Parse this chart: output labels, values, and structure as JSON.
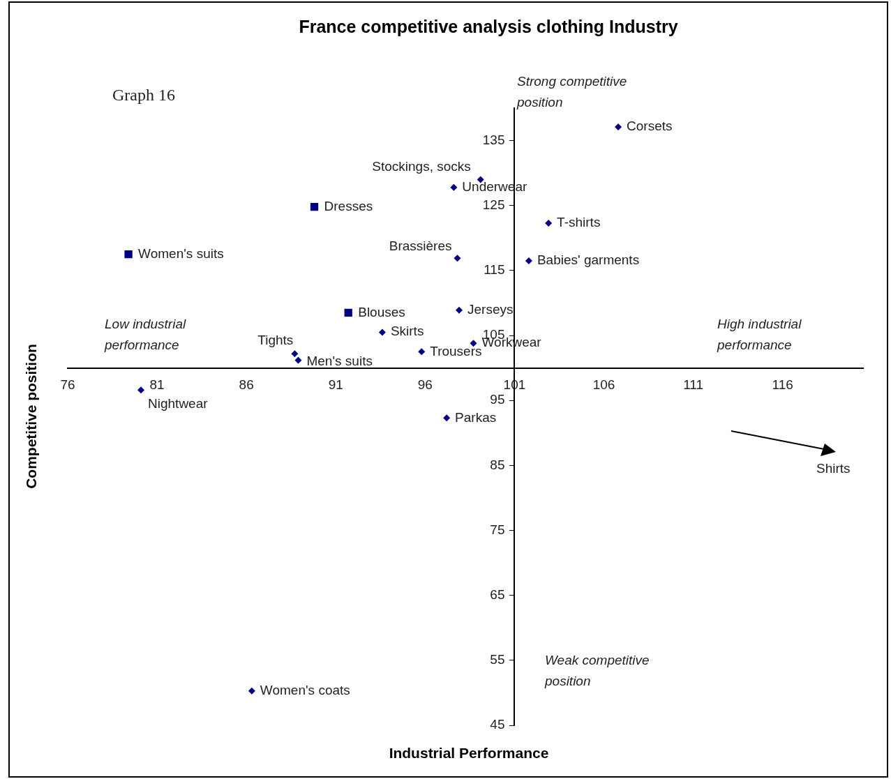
{
  "chart_data": {
    "type": "scatter",
    "title": "France competitive analysis clothing Industry",
    "xlabel": "Industrial Performance",
    "ylabel": "Competitive position",
    "xlim": [
      76,
      120.5
    ],
    "xticks": [
      76,
      81,
      86,
      91,
      96,
      101,
      106,
      111,
      116
    ],
    "ylim": [
      45,
      140
    ],
    "yticks": [
      45,
      55,
      65,
      75,
      85,
      95,
      105,
      115,
      125,
      135
    ],
    "series": [
      {
        "color": "#000080",
        "marker": "diamond",
        "x": [
          106.8,
          99.1,
          97.6,
          102.9,
          97.8,
          101.8,
          97.9,
          93.6,
          98.7,
          95.8,
          88.7,
          88.9,
          80.1,
          97.2,
          86.3
        ],
        "values": [
          137.1,
          129.0,
          127.8,
          122.3,
          116.9,
          116.5,
          108.9,
          105.5,
          103.8,
          102.5,
          102.2,
          101.2,
          96.6,
          92.3,
          50.3
        ]
      },
      {
        "color": "#000080",
        "marker": "square",
        "x": [
          89.8,
          79.4,
          91.7
        ],
        "values": [
          124.8,
          117.5,
          108.5
        ]
      }
    ],
    "annotations": [
      {
        "text": "Corsets",
        "x": 106.8,
        "y": 137.1
      },
      {
        "text": "Stockings, socks",
        "x": 99.1,
        "y": 129.0
      },
      {
        "text": "Underwear",
        "x": 97.6,
        "y": 127.8
      },
      {
        "text": "T-shirts",
        "x": 102.9,
        "y": 122.3
      },
      {
        "text": "Brassières",
        "x": 97.8,
        "y": 116.9
      },
      {
        "text": "Babies' garments",
        "x": 101.8,
        "y": 116.5
      },
      {
        "text": "Jerseys",
        "x": 97.9,
        "y": 108.9
      },
      {
        "text": "Skirts",
        "x": 93.6,
        "y": 105.5
      },
      {
        "text": "Workwear",
        "x": 98.7,
        "y": 103.8
      },
      {
        "text": "Trousers",
        "x": 95.8,
        "y": 102.5
      },
      {
        "text": "Tights",
        "x": 88.7,
        "y": 102.2
      },
      {
        "text": "Men's suits",
        "x": 88.9,
        "y": 101.2
      },
      {
        "text": "Nightwear",
        "x": 80.1,
        "y": 96.6
      },
      {
        "text": "Parkas",
        "x": 97.2,
        "y": 92.3
      },
      {
        "text": "Women's coats",
        "x": 86.3,
        "y": 50.3
      },
      {
        "text": "Dresses",
        "x": 89.8,
        "y": 124.8
      },
      {
        "text": "Women's suits",
        "x": 79.4,
        "y": 117.5
      },
      {
        "text": "Blouses",
        "x": 91.7,
        "y": 108.5
      },
      "Graph 16",
      "Strong competitive position",
      "Low industrial performance",
      "High industrial performance",
      "Weak competitive position",
      "Shirts"
    ]
  }
}
